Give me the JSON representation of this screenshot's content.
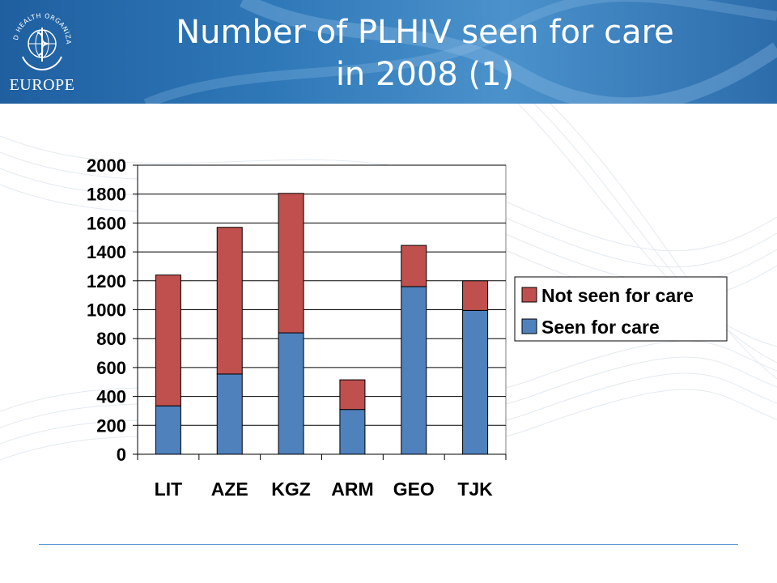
{
  "slide": {
    "title_line1": "Number of PLHIV seen for care",
    "title_line2": "in 2008 (1)",
    "logo_arc_text": "WORLD HEALTH ORGANIZATION",
    "logo_label": "EUROPE"
  },
  "colors": {
    "header": "#2f78b8",
    "seen": "#4f81bd",
    "not_seen": "#c0504d"
  },
  "chart_data": {
    "type": "bar",
    "stacked": true,
    "categories": [
      "LIT",
      "AZE",
      "KGZ",
      "ARM",
      "GEO",
      "TJK"
    ],
    "series": [
      {
        "name": "Seen for care",
        "values": [
          335,
          555,
          840,
          310,
          1160,
          995
        ]
      },
      {
        "name": "Not seen for care",
        "values": [
          905,
          1015,
          965,
          205,
          285,
          205
        ]
      }
    ],
    "ylim": [
      0,
      2000
    ],
    "yticks": [
      0,
      200,
      400,
      600,
      800,
      1000,
      1200,
      1400,
      1600,
      1800,
      2000
    ],
    "grid": true,
    "legend": "right"
  }
}
